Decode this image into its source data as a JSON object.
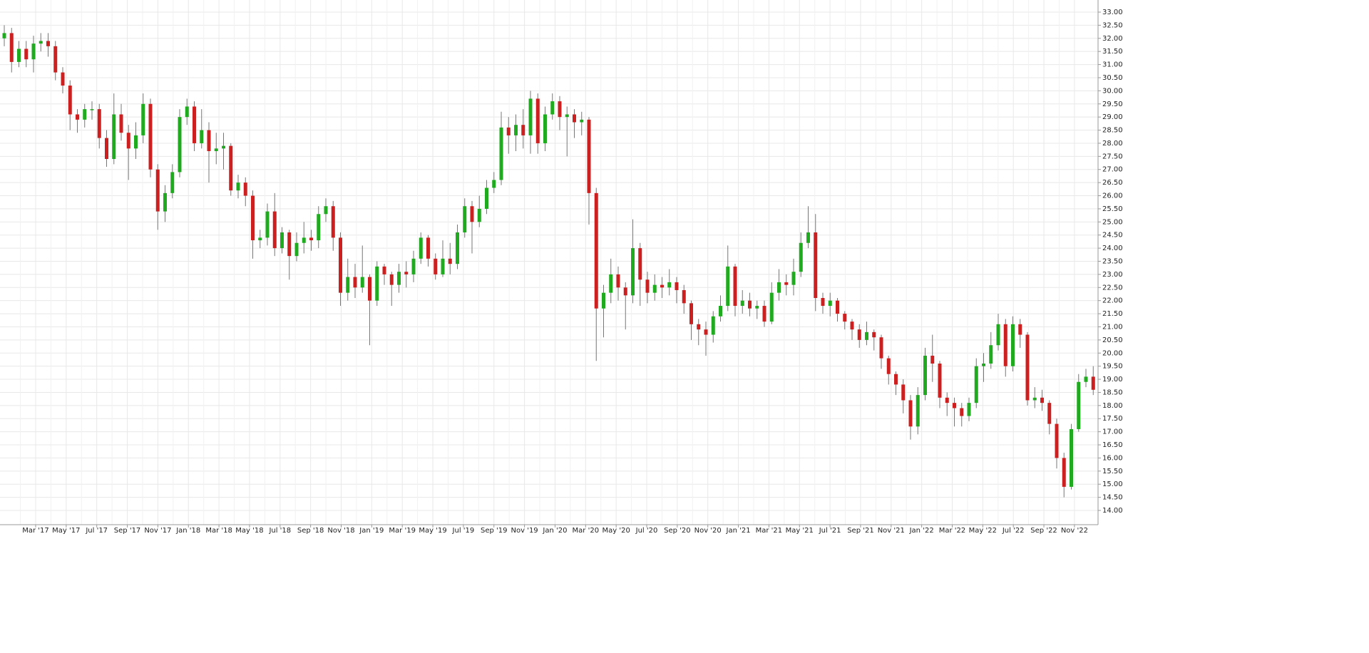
{
  "chart_data": {
    "type": "candlestick",
    "up_color": "#1faa1f",
    "down_color": "#cc1f1f",
    "grid": true,
    "ylim": [
      13.5,
      33.5
    ],
    "yticks": [
      {
        "value": 14,
        "label": "14.00"
      },
      {
        "value": 14.5,
        "label": "14.50"
      },
      {
        "value": 15,
        "label": "15.00"
      },
      {
        "value": 15.5,
        "label": "15.50"
      },
      {
        "value": 16,
        "label": "16.00"
      },
      {
        "value": 16.5,
        "label": "16.50"
      },
      {
        "value": 17,
        "label": "17.00"
      },
      {
        "value": 17.5,
        "label": "17.50"
      },
      {
        "value": 18,
        "label": "18.00"
      },
      {
        "value": 18.5,
        "label": "18.50"
      },
      {
        "value": 19,
        "label": "19.00"
      },
      {
        "value": 19.5,
        "label": "19.50"
      },
      {
        "value": 20,
        "label": "20.00"
      },
      {
        "value": 20.5,
        "label": "20.50"
      },
      {
        "value": 21,
        "label": "21.00"
      },
      {
        "value": 21.5,
        "label": "21.50"
      },
      {
        "value": 22,
        "label": "22.00"
      },
      {
        "value": 22.5,
        "label": "22.50"
      },
      {
        "value": 23,
        "label": "23.00"
      },
      {
        "value": 23.5,
        "label": "23.50"
      },
      {
        "value": 24,
        "label": "24.00"
      },
      {
        "value": 24.5,
        "label": "24.50"
      },
      {
        "value": 25,
        "label": "25.00"
      },
      {
        "value": 25.5,
        "label": "25.50"
      },
      {
        "value": 26,
        "label": "26.00"
      },
      {
        "value": 26.5,
        "label": "26.50"
      },
      {
        "value": 27,
        "label": "27.00"
      },
      {
        "value": 27.5,
        "label": "27.50"
      },
      {
        "value": 28,
        "label": "28.00"
      },
      {
        "value": 28.5,
        "label": "28.50"
      },
      {
        "value": 29,
        "label": "29.00"
      },
      {
        "value": 29.5,
        "label": "29.50"
      },
      {
        "value": 30,
        "label": "30.00"
      },
      {
        "value": 30.5,
        "label": "30.50"
      },
      {
        "value": 31,
        "label": "31.00"
      },
      {
        "value": 31.5,
        "label": "31.50"
      },
      {
        "value": 32,
        "label": "32.00"
      },
      {
        "value": 32.5,
        "label": "32.50"
      },
      {
        "value": 33,
        "label": "33.00"
      }
    ],
    "x_labels": [
      "Mar '17",
      "May '17",
      "Jul '17",
      "Sep '17",
      "Nov '17",
      "Jan '18",
      "Mar '18",
      "May '18",
      "Jul '18",
      "Sep '18",
      "Nov '18",
      "Jan '19",
      "Mar '19",
      "May '19",
      "Jul '19",
      "Sep '19",
      "Nov '19",
      "Jan '20",
      "Mar '20",
      "May '20",
      "Jul '20",
      "Sep '20",
      "Nov '20",
      "Jan '21",
      "Mar '21",
      "May '21",
      "Jul '21",
      "Sep '21",
      "Nov '21",
      "Jan '22",
      "Mar '22",
      "May '22",
      "Jul '22",
      "Sep '22",
      "Nov '22"
    ],
    "open": [
      32.0,
      32.2,
      31.1,
      31.6,
      31.2,
      31.8,
      31.9,
      31.7,
      30.7,
      30.2,
      29.1,
      28.9,
      29.3,
      29.3,
      28.2,
      27.4,
      29.1,
      28.4,
      27.8,
      28.3,
      29.5,
      27.0,
      25.4,
      26.1,
      26.9,
      29.0,
      29.4,
      28.0,
      28.5,
      27.7,
      27.8,
      27.9,
      26.2,
      26.5,
      26.0,
      24.3,
      24.4,
      25.4,
      24.0,
      24.6,
      23.7,
      24.2,
      24.4,
      24.3,
      25.3,
      25.6,
      24.4,
      22.3,
      22.9,
      22.5,
      22.9,
      22.0,
      23.3,
      23.0,
      22.6,
      23.1,
      23.0,
      23.6,
      24.4,
      23.6,
      23.0,
      23.6,
      23.4,
      24.6,
      25.6,
      25.0,
      25.5,
      26.3,
      26.6,
      28.6,
      28.3,
      28.7,
      28.3,
      29.7,
      28.0,
      29.1,
      29.6,
      29.0,
      29.1,
      28.8,
      28.9,
      26.1,
      21.7,
      22.3,
      23.0,
      22.5,
      22.2,
      24.0,
      22.8,
      22.3,
      22.6,
      22.5,
      22.7,
      22.4,
      21.9,
      21.1,
      20.9,
      20.7,
      21.4,
      21.8,
      23.3,
      21.8,
      22.0,
      21.7,
      21.8,
      21.2,
      22.3,
      22.7,
      22.6,
      23.1,
      24.2,
      24.6,
      22.1,
      21.8,
      22.0,
      21.5,
      21.2,
      20.9,
      20.5,
      20.8,
      20.6,
      19.8,
      19.2,
      18.8,
      18.2,
      17.2,
      18.4,
      19.9,
      19.6,
      18.3,
      18.1,
      17.9,
      17.6,
      18.1,
      19.5,
      19.6,
      20.3,
      21.1,
      19.5,
      21.1,
      20.7,
      18.2,
      18.3,
      18.1,
      17.3,
      16.0,
      14.9,
      17.1,
      18.9,
      19.1
    ],
    "high": [
      32.5,
      32.4,
      31.9,
      31.9,
      32.1,
      32.2,
      32.2,
      31.9,
      30.9,
      30.4,
      29.3,
      29.5,
      29.6,
      29.5,
      28.5,
      29.9,
      29.5,
      28.7,
      28.8,
      29.9,
      29.7,
      27.2,
      26.4,
      27.2,
      29.3,
      29.7,
      29.6,
      29.3,
      28.8,
      28.4,
      28.4,
      28.0,
      26.8,
      26.7,
      26.2,
      24.7,
      25.7,
      26.1,
      24.8,
      24.7,
      24.6,
      25.0,
      24.7,
      25.6,
      25.9,
      25.8,
      24.6,
      23.6,
      23.4,
      24.1,
      23.0,
      23.5,
      23.4,
      23.1,
      23.4,
      23.5,
      23.9,
      24.6,
      24.5,
      23.8,
      24.3,
      24.2,
      24.9,
      25.9,
      25.8,
      26.0,
      26.6,
      26.9,
      29.2,
      29.0,
      29.1,
      29.3,
      30.0,
      29.9,
      29.4,
      29.9,
      29.8,
      29.4,
      29.3,
      29.2,
      29.0,
      26.3,
      22.6,
      23.6,
      23.3,
      22.7,
      25.1,
      24.2,
      23.1,
      23.0,
      22.9,
      23.2,
      22.9,
      22.6,
      22.0,
      21.3,
      21.2,
      21.6,
      22.2,
      24.1,
      23.4,
      22.4,
      22.3,
      22.0,
      22.0,
      22.7,
      23.2,
      23.0,
      23.6,
      24.6,
      25.6,
      25.3,
      22.3,
      22.3,
      22.1,
      21.6,
      21.3,
      21.1,
      21.2,
      20.9,
      20.7,
      19.9,
      19.3,
      19.0,
      18.4,
      18.7,
      20.2,
      20.7,
      19.7,
      18.5,
      18.3,
      18.1,
      18.3,
      19.8,
      20.0,
      20.8,
      21.5,
      21.3,
      21.4,
      21.3,
      20.8,
      18.7,
      18.6,
      18.2,
      17.5,
      16.2,
      17.3,
      19.2,
      19.4,
      19.5
    ],
    "low": [
      31.7,
      30.7,
      30.9,
      30.9,
      30.7,
      31.5,
      31.3,
      30.4,
      29.9,
      28.5,
      28.4,
      28.6,
      28.9,
      27.8,
      27.1,
      27.2,
      28.1,
      26.6,
      27.4,
      28.0,
      26.7,
      24.7,
      25.0,
      25.9,
      26.7,
      28.7,
      27.7,
      27.8,
      26.5,
      27.2,
      27.0,
      26.0,
      25.9,
      25.6,
      23.6,
      24.0,
      24.1,
      23.7,
      23.8,
      22.8,
      23.5,
      23.8,
      23.9,
      24.0,
      25.0,
      23.9,
      21.8,
      22.0,
      22.1,
      22.3,
      20.3,
      21.8,
      22.6,
      21.8,
      22.3,
      22.5,
      22.7,
      23.4,
      23.3,
      22.8,
      22.9,
      23.0,
      23.2,
      24.4,
      23.8,
      24.8,
      25.3,
      26.1,
      26.4,
      27.6,
      27.7,
      27.8,
      27.6,
      27.6,
      27.7,
      28.9,
      28.5,
      27.5,
      28.2,
      28.3,
      24.9,
      19.7,
      20.6,
      21.9,
      22.0,
      20.9,
      21.9,
      21.8,
      21.9,
      22.0,
      22.1,
      22.2,
      21.9,
      21.5,
      20.5,
      20.3,
      19.9,
      20.4,
      21.2,
      21.6,
      21.4,
      21.5,
      21.4,
      21.3,
      21.0,
      21.1,
      22.0,
      22.2,
      22.2,
      22.9,
      24.0,
      21.6,
      21.5,
      21.4,
      21.2,
      20.9,
      20.5,
      20.2,
      20.3,
      20.1,
      19.4,
      18.8,
      18.4,
      17.7,
      16.7,
      16.9,
      18.2,
      18.9,
      17.9,
      17.6,
      17.2,
      17.2,
      17.4,
      17.9,
      18.9,
      19.4,
      20.1,
      19.1,
      19.3,
      20.2,
      18.0,
      17.9,
      17.8,
      16.9,
      15.6,
      14.5,
      14.8,
      17.0,
      18.7,
      18.4
    ],
    "close": [
      32.2,
      31.1,
      31.6,
      31.2,
      31.8,
      31.9,
      31.7,
      30.7,
      30.2,
      29.1,
      28.9,
      29.3,
      29.3,
      28.2,
      27.4,
      29.1,
      28.4,
      27.8,
      28.3,
      29.5,
      27.0,
      25.4,
      26.1,
      26.9,
      29.0,
      29.4,
      28.0,
      28.5,
      27.7,
      27.8,
      27.9,
      26.2,
      26.5,
      26.0,
      24.3,
      24.4,
      25.4,
      24.0,
      24.6,
      23.7,
      24.2,
      24.4,
      24.3,
      25.3,
      25.6,
      24.4,
      22.3,
      22.9,
      22.5,
      22.9,
      22.0,
      23.3,
      23.0,
      22.6,
      23.1,
      23.0,
      23.6,
      24.4,
      23.6,
      23.0,
      23.6,
      23.4,
      24.6,
      25.6,
      25.0,
      25.5,
      26.3,
      26.6,
      28.6,
      28.3,
      28.7,
      28.3,
      29.7,
      28.0,
      29.1,
      29.6,
      29.0,
      29.1,
      28.8,
      28.9,
      26.1,
      21.7,
      22.3,
      23.0,
      22.5,
      22.2,
      24.0,
      22.8,
      22.3,
      22.6,
      22.5,
      22.7,
      22.4,
      21.9,
      21.1,
      20.9,
      20.7,
      21.4,
      21.8,
      23.3,
      21.8,
      22.0,
      21.7,
      21.8,
      21.2,
      22.3,
      22.7,
      22.6,
      23.1,
      24.2,
      24.6,
      22.1,
      21.8,
      22.0,
      21.5,
      21.2,
      20.9,
      20.5,
      20.8,
      20.6,
      19.8,
      19.2,
      18.8,
      18.2,
      17.2,
      18.4,
      19.9,
      19.6,
      18.3,
      18.1,
      17.9,
      17.6,
      18.1,
      19.5,
      19.6,
      20.3,
      21.1,
      19.5,
      21.1,
      20.7,
      18.2,
      18.3,
      18.1,
      17.3,
      16.0,
      14.9,
      17.1,
      18.9,
      19.1,
      18.6
    ]
  }
}
